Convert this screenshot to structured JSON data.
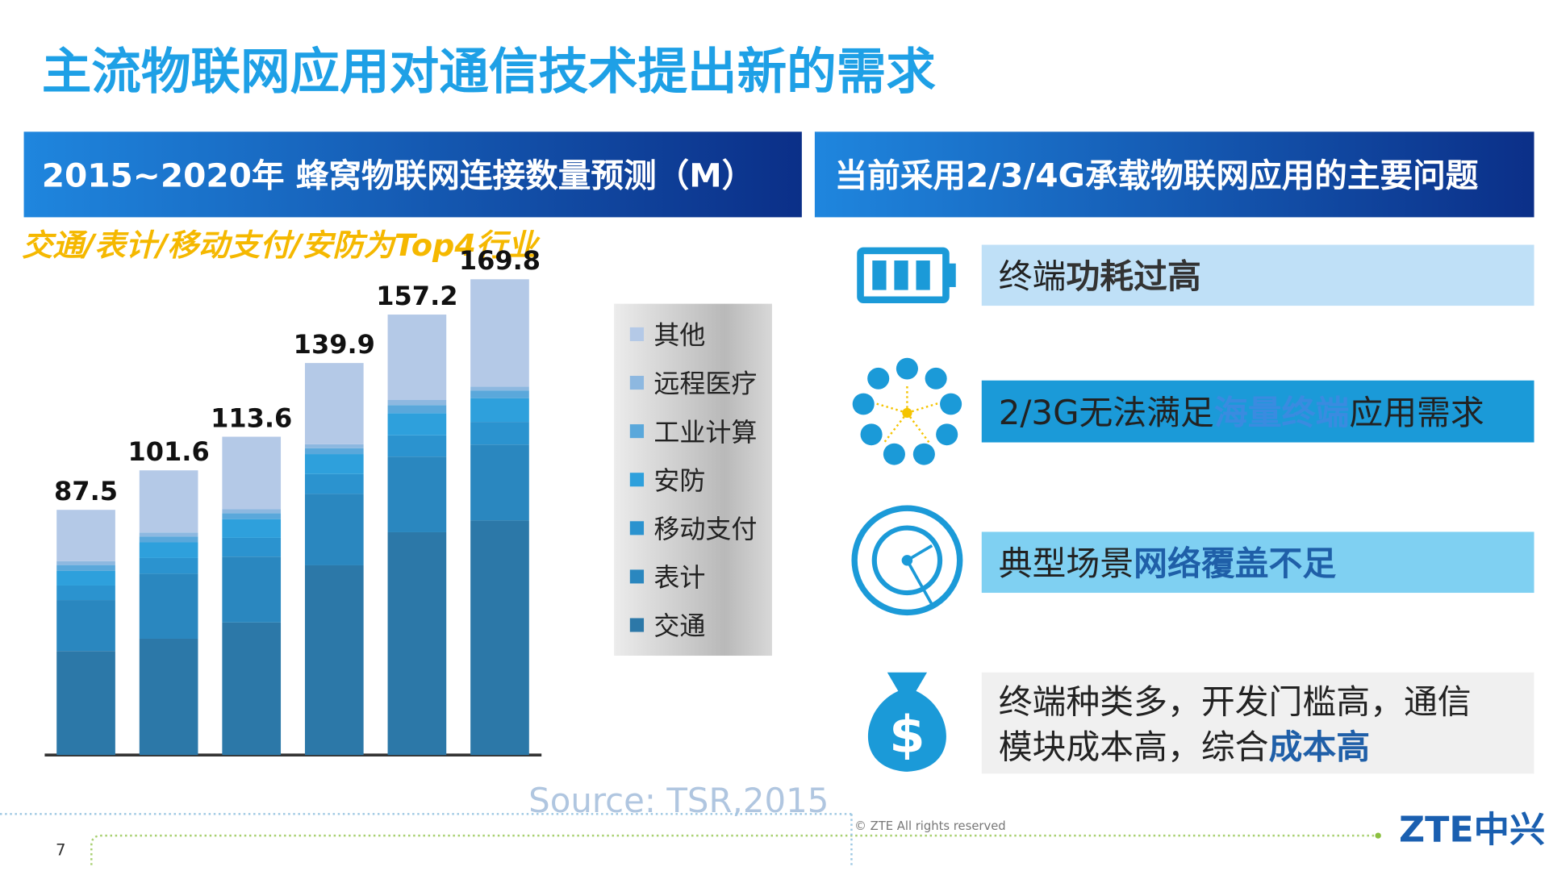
{
  "title": "主流物联网应用对通信技术提出新的需求",
  "chart_data": {
    "type": "bar",
    "stacked": true,
    "title": "2015~2020年 蜂窝物联网连接数量预测（M）",
    "subtitle": "交通/表计/移动支付/安防为Top4行业",
    "source": "Source: TSR,2015",
    "categories": [
      null,
      null,
      null,
      null,
      null,
      null
    ],
    "series": [
      {
        "name": "交通",
        "color": "#2c78a8",
        "values": [
          37.1,
          41.5,
          47.3,
          67.7,
          79.5,
          83.7
        ]
      },
      {
        "name": "表计",
        "color": "#2a87bf",
        "values": [
          18.2,
          23.2,
          23.5,
          25.5,
          27.0,
          27.1
        ]
      },
      {
        "name": "移动支付",
        "color": "#2b93cf",
        "values": [
          5.2,
          5.6,
          6.7,
          7.1,
          7.6,
          8.1
        ]
      },
      {
        "name": "安防",
        "color": "#2ea0dc",
        "values": [
          5.2,
          5.6,
          6.7,
          7.1,
          7.9,
          8.4
        ]
      },
      {
        "name": "工业计算",
        "color": "#5aa8db",
        "values": [
          2.1,
          2.1,
          2.1,
          2.1,
          2.9,
          2.8
        ]
      },
      {
        "name": "远程医疗",
        "color": "#8db8e0",
        "values": [
          1.4,
          1.4,
          1.4,
          1.4,
          1.8,
          1.4
        ]
      },
      {
        "name": "其他",
        "color": "#b4c9e7",
        "values": [
          18.3,
          22.2,
          25.9,
          29.0,
          30.5,
          38.3
        ]
      }
    ],
    "totals": [
      87.5,
      101.6,
      113.6,
      139.9,
      157.2,
      169.8
    ]
  },
  "right_header": "当前采用2/3/4G承载物联网应用的主要问题",
  "issues": [
    {
      "box_color": "#bfe0f7",
      "em_color": "#333333",
      "lines": [
        [
          {
            "text": "终端"
          },
          {
            "text": "功耗过高",
            "em": true
          }
        ]
      ]
    },
    {
      "box_color": "#1b9ad8",
      "em_color": "#3a8be0",
      "lines": [
        [
          {
            "text": "2/3G无法满足"
          },
          {
            "text": "海量终端",
            "em": true
          },
          {
            "text": "应用需求"
          }
        ]
      ]
    },
    {
      "box_color": "#7fd0f2",
      "em_color": "#1f5fa8",
      "lines": [
        [
          {
            "text": "典型场景"
          },
          {
            "text": "网络覆盖不足",
            "em": true
          }
        ]
      ]
    },
    {
      "box_color": "#f0f0f0",
      "em_color": "#1f5fa8",
      "lines": [
        [
          {
            "text": "终端种类多，开发门槛高，通信"
          }
        ],
        [
          {
            "text": "模块成本高，综合"
          },
          {
            "text": "成本高",
            "em": true
          }
        ]
      ]
    }
  ],
  "copyright": "© ZTE All rights reserved",
  "page_number": "7",
  "logo": "ZTE中兴"
}
